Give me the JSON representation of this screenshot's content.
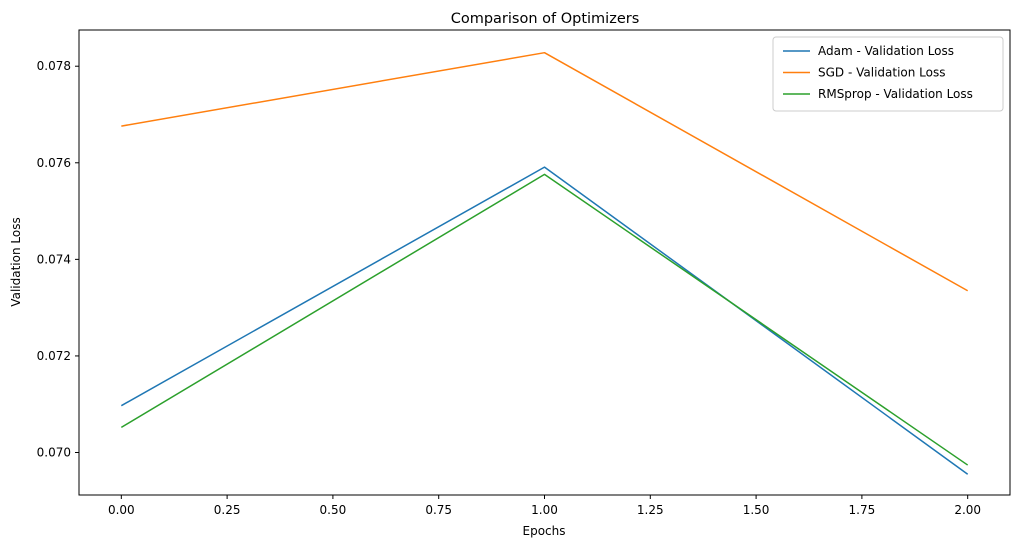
{
  "chart_data": {
    "type": "line",
    "title": "Comparison of Optimizers",
    "xlabel": "Epochs",
    "ylabel": "Validation Loss",
    "x": [
      0,
      1,
      2
    ],
    "xlim": [
      -0.1,
      2.1
    ],
    "ylim": [
      0.06912,
      0.07875
    ],
    "xticks": [
      0.0,
      0.25,
      0.5,
      0.75,
      1.0,
      1.25,
      1.5,
      1.75,
      2.0
    ],
    "xtick_labels": [
      "0.00",
      "0.25",
      "0.50",
      "0.75",
      "1.00",
      "1.25",
      "1.50",
      "1.75",
      "2.00"
    ],
    "yticks": [
      0.07,
      0.072,
      0.074,
      0.076,
      0.078
    ],
    "ytick_labels": [
      "0.070",
      "0.072",
      "0.074",
      "0.076",
      "0.078"
    ],
    "grid": false,
    "legend_position": "top-right",
    "series": [
      {
        "name": "Adam - Validation Loss",
        "color": "#1f77b4",
        "values": [
          0.07097,
          0.07591,
          0.06955
        ]
      },
      {
        "name": "SGD - Validation Loss",
        "color": "#ff7f0e",
        "values": [
          0.07676,
          0.07828,
          0.07335
        ]
      },
      {
        "name": "RMSprop - Validation Loss",
        "color": "#2ca02c",
        "values": [
          0.07052,
          0.07576,
          0.06974
        ]
      }
    ]
  }
}
